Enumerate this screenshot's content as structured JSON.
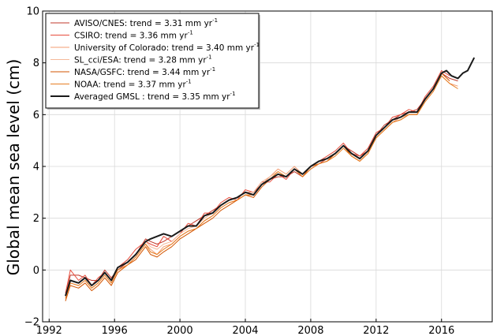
{
  "chart_data": {
    "type": "line",
    "title": "",
    "xlabel": "",
    "ylabel": "Global mean sea level (cm)",
    "xlim": [
      1991.6,
      2019.1
    ],
    "ylim": [
      -2,
      10
    ],
    "xticks": [
      1992,
      1996,
      2000,
      2004,
      2008,
      2012,
      2016
    ],
    "yticks": [
      -2,
      0,
      2,
      4,
      6,
      8,
      10
    ],
    "grid": true,
    "legend_position": "top-left",
    "series": [
      {
        "name": "AVISO/CNES: trend =  3.31 mm yr",
        "unit_sup": "-1",
        "color": "#c0392b",
        "width": 1,
        "x": [
          1993.0,
          1993.3,
          1993.8,
          1994.2,
          1994.6,
          1995.0,
          1995.4,
          1995.8,
          1996.2,
          1996.8,
          1997.3,
          1997.9,
          1998.2,
          1998.6,
          1999.0,
          1999.5,
          2000.0,
          2000.5,
          2001.0,
          2001.5,
          2002.0,
          2002.5,
          2003.0,
          2003.5,
          2004.0,
          2004.5,
          2005.0,
          2005.5,
          2006.0,
          2006.5,
          2007.0,
          2007.5,
          2008.0,
          2008.5,
          2009.0,
          2009.5,
          2010.0,
          2010.5,
          2011.0,
          2011.5,
          2012.0,
          2012.5,
          2013.0,
          2013.5,
          2014.0,
          2014.5,
          2015.0,
          2015.5,
          2016.0,
          2016.5,
          2017.0
        ],
        "y": [
          -1.0,
          -0.2,
          -0.2,
          -0.3,
          -0.4,
          -0.4,
          0.0,
          -0.3,
          0.0,
          0.3,
          0.6,
          1.2,
          1.1,
          1.0,
          1.1,
          1.3,
          1.5,
          1.7,
          1.9,
          2.1,
          2.3,
          2.5,
          2.7,
          2.8,
          3.0,
          3.0,
          3.3,
          3.5,
          3.6,
          3.6,
          3.8,
          3.6,
          3.9,
          4.1,
          4.3,
          4.5,
          4.8,
          4.6,
          4.4,
          4.6,
          5.2,
          5.6,
          5.8,
          6.0,
          6.1,
          6.2,
          6.6,
          7.0,
          7.6,
          7.4,
          7.3
        ]
      },
      {
        "name": "CSIRO: trend =  3.36 mm yr",
        "unit_sup": "-1",
        "color": "#e74c3c",
        "width": 1,
        "x": [
          1993.0,
          1993.3,
          1993.8,
          1994.2,
          1994.6,
          1995.0,
          1995.4,
          1995.8,
          1996.2,
          1996.8,
          1997.3,
          1997.9,
          1998.2,
          1998.6,
          1999.0,
          1999.5,
          2000.0,
          2000.5,
          2001.0,
          2001.5,
          2002.0,
          2002.5,
          2003.0,
          2003.5,
          2004.0,
          2004.5,
          2005.0,
          2005.5,
          2006.0,
          2006.5,
          2007.0,
          2007.5,
          2008.0,
          2008.5,
          2009.0,
          2009.5,
          2010.0,
          2010.5,
          2011.0,
          2011.5,
          2012.0,
          2012.5,
          2013.0,
          2013.5,
          2014.0,
          2014.5,
          2015.0,
          2015.5,
          2016.0,
          2016.5
        ],
        "y": [
          -0.9,
          0.0,
          -0.4,
          -0.2,
          -0.6,
          -0.3,
          -0.1,
          -0.4,
          0.1,
          0.4,
          0.8,
          1.1,
          1.0,
          0.9,
          1.3,
          1.1,
          1.4,
          1.8,
          1.7,
          2.2,
          2.2,
          2.6,
          2.8,
          2.7,
          3.1,
          3.0,
          3.4,
          3.4,
          3.7,
          3.5,
          3.9,
          3.7,
          4.0,
          4.2,
          4.4,
          4.6,
          4.9,
          4.5,
          4.4,
          4.7,
          5.3,
          5.5,
          5.9,
          6.0,
          6.2,
          6.1,
          6.7,
          7.1,
          7.7,
          7.5
        ]
      },
      {
        "name": "University of Colorado: trend =  3.40 mm yr",
        "unit_sup": "-1",
        "color": "#f39c72",
        "width": 1,
        "x": [
          1993.0,
          1993.3,
          1993.8,
          1994.2,
          1994.6,
          1995.0,
          1995.4,
          1995.8,
          1996.2,
          1996.8,
          1997.3,
          1997.9,
          1998.2,
          1998.6,
          1999.0,
          1999.5,
          2000.0,
          2000.5,
          2001.0,
          2001.5,
          2002.0,
          2002.5,
          2003.0,
          2003.5,
          2004.0,
          2004.5,
          2005.0,
          2005.5,
          2006.0,
          2006.5,
          2007.0,
          2007.5,
          2008.0,
          2008.5,
          2009.0,
          2009.5,
          2010.0,
          2010.5,
          2011.0,
          2011.5,
          2012.0,
          2012.5,
          2013.0,
          2013.5,
          2014.0,
          2014.5,
          2015.0,
          2015.5,
          2016.0,
          2016.5,
          2017.0
        ],
        "y": [
          -1.1,
          -0.5,
          -0.6,
          -0.4,
          -0.7,
          -0.5,
          -0.2,
          -0.5,
          0.0,
          0.2,
          0.5,
          1.0,
          0.8,
          0.6,
          0.9,
          1.0,
          1.3,
          1.5,
          1.6,
          1.9,
          2.1,
          2.4,
          2.6,
          2.7,
          2.9,
          2.9,
          3.3,
          3.6,
          3.9,
          3.7,
          4.0,
          3.7,
          4.0,
          4.1,
          4.2,
          4.5,
          4.8,
          4.4,
          4.2,
          4.5,
          5.1,
          5.4,
          5.7,
          5.9,
          6.0,
          6.0,
          6.5,
          6.9,
          7.5,
          7.2,
          7.1
        ]
      },
      {
        "name": "SL_cci/ESA: trend =  3.28 mm yr",
        "unit_sup": "-1",
        "color": "#f5b99a",
        "width": 1,
        "x": [
          1993.0,
          1993.3,
          1993.8,
          1994.2,
          1994.6,
          1995.0,
          1995.4,
          1995.8,
          1996.2,
          1996.8,
          1997.3,
          1997.9,
          1998.2,
          1998.6,
          1999.0,
          1999.5,
          2000.0,
          2000.5,
          2001.0,
          2001.5,
          2002.0,
          2002.5,
          2003.0,
          2003.5,
          2004.0,
          2004.5,
          2005.0,
          2005.5,
          2006.0,
          2006.5,
          2007.0,
          2007.5,
          2008.0,
          2008.5,
          2009.0,
          2009.5,
          2010.0,
          2010.5,
          2011.0,
          2011.5,
          2012.0,
          2012.5,
          2013.0,
          2013.5,
          2014.0,
          2014.5,
          2015.0
        ],
        "y": [
          -1.0,
          -0.4,
          -0.5,
          -0.3,
          -0.6,
          -0.4,
          -0.1,
          -0.4,
          0.1,
          0.3,
          0.6,
          1.1,
          0.9,
          0.8,
          1.0,
          1.1,
          1.4,
          1.6,
          1.7,
          2.0,
          2.2,
          2.5,
          2.7,
          2.8,
          3.0,
          3.0,
          3.4,
          3.6,
          3.8,
          3.6,
          3.9,
          3.7,
          4.0,
          4.2,
          4.3,
          4.5,
          4.8,
          4.5,
          4.3,
          4.6,
          5.2,
          5.5,
          5.8,
          5.9,
          6.1,
          6.1,
          6.6
        ]
      },
      {
        "name": "NASA/GSFC: trend =  3.44 mm yr",
        "unit_sup": "-1",
        "color": "#d35400",
        "width": 1,
        "x": [
          1993.0,
          1993.3,
          1993.8,
          1994.2,
          1994.6,
          1995.0,
          1995.4,
          1995.8,
          1996.2,
          1996.8,
          1997.3,
          1997.9,
          1998.2,
          1998.6,
          1999.0,
          1999.5,
          2000.0,
          2000.5,
          2001.0,
          2001.5,
          2002.0,
          2002.5,
          2003.0,
          2003.5,
          2004.0,
          2004.5,
          2005.0,
          2005.5,
          2006.0,
          2006.5,
          2007.0,
          2007.5,
          2008.0,
          2008.5,
          2009.0,
          2009.5,
          2010.0,
          2010.5,
          2011.0,
          2011.5,
          2012.0,
          2012.5,
          2013.0,
          2013.5,
          2014.0,
          2014.5,
          2015.0,
          2015.5,
          2016.0,
          2016.5
        ],
        "y": [
          -1.2,
          -0.6,
          -0.7,
          -0.5,
          -0.8,
          -0.6,
          -0.3,
          -0.6,
          -0.1,
          0.2,
          0.4,
          0.9,
          0.6,
          0.5,
          0.7,
          0.9,
          1.2,
          1.4,
          1.6,
          1.8,
          2.0,
          2.3,
          2.5,
          2.7,
          2.9,
          2.8,
          3.2,
          3.5,
          3.7,
          3.6,
          3.9,
          3.6,
          4.0,
          4.1,
          4.2,
          4.5,
          4.8,
          4.4,
          4.2,
          4.5,
          5.1,
          5.4,
          5.7,
          5.8,
          6.0,
          6.0,
          6.6,
          7.0,
          7.6,
          7.3
        ]
      },
      {
        "name": "NOAA: trend =  3.37 mm yr",
        "unit_sup": "-1",
        "color": "#e67e22",
        "width": 1,
        "x": [
          1993.0,
          1993.3,
          1993.8,
          1994.2,
          1994.6,
          1995.0,
          1995.4,
          1995.8,
          1996.2,
          1996.8,
          1997.3,
          1997.9,
          1998.2,
          1998.6,
          1999.0,
          1999.5,
          2000.0,
          2000.5,
          2001.0,
          2001.5,
          2002.0,
          2002.5,
          2003.0,
          2003.5,
          2004.0,
          2004.5,
          2005.0,
          2005.5,
          2006.0,
          2006.5,
          2007.0,
          2007.5,
          2008.0,
          2008.5,
          2009.0,
          2009.5,
          2010.0,
          2010.5,
          2011.0,
          2011.5,
          2012.0,
          2012.5,
          2013.0,
          2013.5,
          2014.0,
          2014.5,
          2015.0,
          2015.5,
          2016.0,
          2016.5,
          2017.0
        ],
        "y": [
          -1.1,
          -0.5,
          -0.6,
          -0.4,
          -0.7,
          -0.5,
          -0.2,
          -0.5,
          0.0,
          0.2,
          0.5,
          1.0,
          0.7,
          0.6,
          0.8,
          1.0,
          1.3,
          1.5,
          1.6,
          1.9,
          2.1,
          2.4,
          2.6,
          2.7,
          2.9,
          2.9,
          3.3,
          3.5,
          3.8,
          3.6,
          3.9,
          3.6,
          3.9,
          4.1,
          4.2,
          4.4,
          4.7,
          4.4,
          4.2,
          4.5,
          5.1,
          5.4,
          5.7,
          5.8,
          6.0,
          6.0,
          6.5,
          6.9,
          7.5,
          7.2,
          7.0
        ]
      },
      {
        "name": "Averaged GMSL : trend =  3.35 mm yr",
        "unit_sup": "-1",
        "color": "#1a1a1a",
        "width": 2,
        "x": [
          1993.0,
          1993.3,
          1993.8,
          1994.2,
          1994.6,
          1995.0,
          1995.4,
          1995.8,
          1996.2,
          1996.8,
          1997.3,
          1997.9,
          1998.2,
          1998.6,
          1999.0,
          1999.5,
          2000.0,
          2000.5,
          2001.0,
          2001.5,
          2002.0,
          2002.5,
          2003.0,
          2003.5,
          2004.0,
          2004.5,
          2005.0,
          2005.5,
          2006.0,
          2006.5,
          2007.0,
          2007.5,
          2008.0,
          2008.5,
          2009.0,
          2009.5,
          2010.0,
          2010.5,
          2011.0,
          2011.5,
          2012.0,
          2012.5,
          2013.0,
          2013.5,
          2014.0,
          2014.5,
          2015.0,
          2015.5,
          2016.0,
          2016.3,
          2016.6,
          2017.0,
          2017.3,
          2017.6,
          2018.0
        ],
        "y": [
          -1.0,
          -0.4,
          -0.5,
          -0.3,
          -0.6,
          -0.4,
          -0.1,
          -0.4,
          0.1,
          0.3,
          0.6,
          1.1,
          1.2,
          1.3,
          1.4,
          1.3,
          1.5,
          1.7,
          1.7,
          2.1,
          2.2,
          2.5,
          2.7,
          2.8,
          3.0,
          2.9,
          3.3,
          3.5,
          3.7,
          3.6,
          3.9,
          3.7,
          4.0,
          4.2,
          4.3,
          4.5,
          4.8,
          4.5,
          4.3,
          4.6,
          5.2,
          5.5,
          5.8,
          5.9,
          6.1,
          6.1,
          6.6,
          7.0,
          7.6,
          7.7,
          7.5,
          7.4,
          7.6,
          7.7,
          8.2
        ]
      }
    ]
  }
}
